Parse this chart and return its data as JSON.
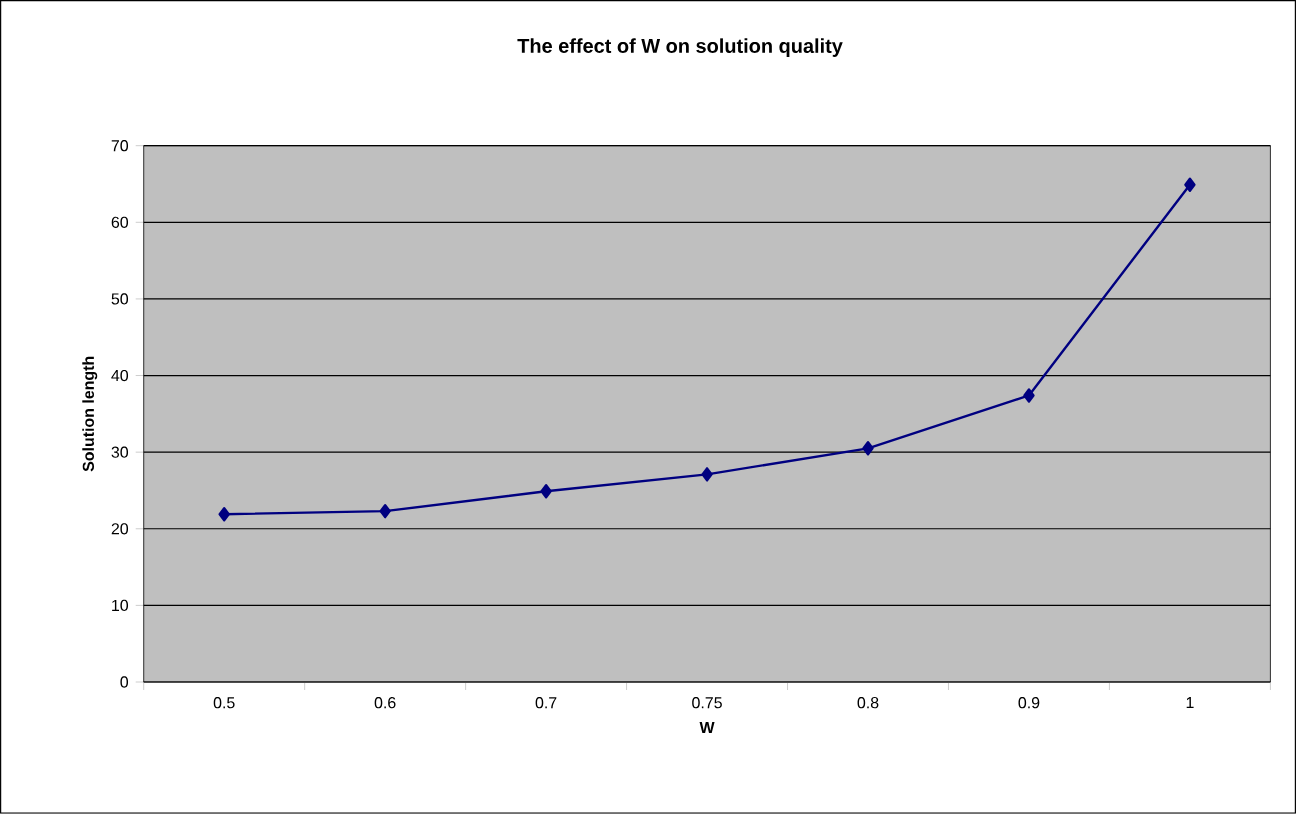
{
  "chart_data": {
    "type": "line",
    "title": "The effect of W on solution quality",
    "xlabel": "W",
    "ylabel": "Solution length",
    "categories": [
      "0.5",
      "0.6",
      "0.7",
      "0.75",
      "0.8",
      "0.9",
      "1"
    ],
    "series": [
      {
        "color": "#000080",
        "values": [
          21.9,
          22.3,
          24.9,
          27.1,
          30.5,
          37.4,
          64.9
        ]
      }
    ],
    "ylim": [
      0,
      70
    ],
    "yticks": [
      0,
      10,
      20,
      30,
      40,
      50,
      60,
      70
    ],
    "grid": "y",
    "marker": "diamond",
    "line_style": "solid"
  }
}
